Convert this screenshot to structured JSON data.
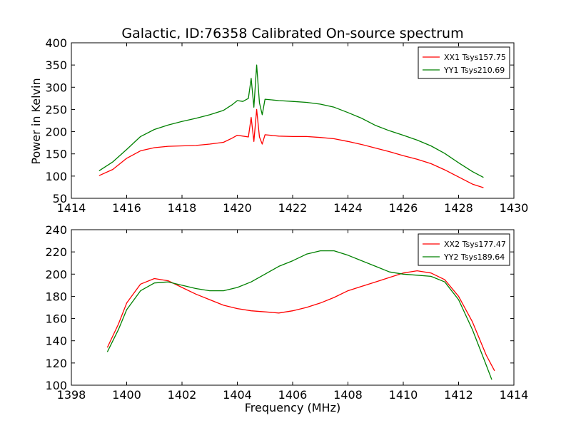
{
  "chart_data": [
    {
      "type": "line",
      "title": "Galactic, ID:76358 Calibrated On-source spectrum",
      "xlabel": "",
      "ylabel": "Power in Kelvin",
      "xlim": [
        1414,
        1430
      ],
      "ylim": [
        50,
        400
      ],
      "xticks": [
        1414,
        1416,
        1418,
        1420,
        1422,
        1424,
        1426,
        1428,
        1430
      ],
      "yticks": [
        50,
        100,
        150,
        200,
        250,
        300,
        350,
        400
      ],
      "grid": false,
      "legend": "top-right",
      "series": [
        {
          "name": "XX1 Tsys157.75",
          "color": "#ff0000",
          "points": [
            [
              1415.0,
              101
            ],
            [
              1415.5,
              115
            ],
            [
              1416.0,
              140
            ],
            [
              1416.5,
              157
            ],
            [
              1417.0,
              164
            ],
            [
              1417.5,
              167
            ],
            [
              1418.0,
              168
            ],
            [
              1418.5,
              169
            ],
            [
              1419.0,
              172
            ],
            [
              1419.5,
              176
            ],
            [
              1419.8,
              185
            ],
            [
              1420.0,
              192
            ],
            [
              1420.2,
              190
            ],
            [
              1420.4,
              188
            ],
            [
              1420.5,
              232
            ],
            [
              1420.6,
              178
            ],
            [
              1420.7,
              250
            ],
            [
              1420.8,
              188
            ],
            [
              1420.9,
              172
            ],
            [
              1421.0,
              193
            ],
            [
              1421.5,
              190
            ],
            [
              1422.0,
              189
            ],
            [
              1422.5,
              189
            ],
            [
              1423.0,
              187
            ],
            [
              1423.5,
              184
            ],
            [
              1424.0,
              178
            ],
            [
              1424.5,
              171
            ],
            [
              1425.0,
              163
            ],
            [
              1425.5,
              155
            ],
            [
              1426.0,
              146
            ],
            [
              1426.5,
              138
            ],
            [
              1427.0,
              128
            ],
            [
              1427.5,
              114
            ],
            [
              1428.0,
              98
            ],
            [
              1428.5,
              82
            ],
            [
              1428.9,
              74
            ]
          ]
        },
        {
          "name": "YY1 Tsys210.69",
          "color": "#008000",
          "points": [
            [
              1415.0,
              112
            ],
            [
              1415.5,
              132
            ],
            [
              1416.0,
              160
            ],
            [
              1416.5,
              189
            ],
            [
              1417.0,
              205
            ],
            [
              1417.5,
              215
            ],
            [
              1418.0,
              223
            ],
            [
              1418.5,
              230
            ],
            [
              1419.0,
              238
            ],
            [
              1419.5,
              248
            ],
            [
              1419.8,
              260
            ],
            [
              1420.0,
              270
            ],
            [
              1420.2,
              268
            ],
            [
              1420.4,
              275
            ],
            [
              1420.5,
              320
            ],
            [
              1420.6,
              255
            ],
            [
              1420.7,
              350
            ],
            [
              1420.8,
              265
            ],
            [
              1420.9,
              238
            ],
            [
              1421.0,
              273
            ],
            [
              1421.5,
              270
            ],
            [
              1422.0,
              268
            ],
            [
              1422.5,
              266
            ],
            [
              1423.0,
              262
            ],
            [
              1423.5,
              255
            ],
            [
              1424.0,
              243
            ],
            [
              1424.5,
              230
            ],
            [
              1425.0,
              214
            ],
            [
              1425.5,
              202
            ],
            [
              1426.0,
              192
            ],
            [
              1426.5,
              181
            ],
            [
              1427.0,
              168
            ],
            [
              1427.5,
              151
            ],
            [
              1428.0,
              130
            ],
            [
              1428.5,
              110
            ],
            [
              1428.9,
              97
            ]
          ]
        }
      ]
    },
    {
      "type": "line",
      "title": "",
      "xlabel": "Frequency (MHz)",
      "ylabel": "",
      "xlim": [
        1398,
        1414
      ],
      "ylim": [
        100,
        240
      ],
      "xticks": [
        1398,
        1400,
        1402,
        1404,
        1406,
        1408,
        1410,
        1412,
        1414
      ],
      "yticks": [
        100,
        120,
        140,
        160,
        180,
        200,
        220,
        240
      ],
      "grid": false,
      "legend": "top-right",
      "series": [
        {
          "name": "XX2 Tsys177.47",
          "color": "#ff0000",
          "points": [
            [
              1399.3,
              134
            ],
            [
              1399.7,
              155
            ],
            [
              1400.0,
              174
            ],
            [
              1400.5,
              191
            ],
            [
              1401.0,
              196
            ],
            [
              1401.5,
              194
            ],
            [
              1402.0,
              188
            ],
            [
              1402.5,
              182
            ],
            [
              1403.0,
              177
            ],
            [
              1403.5,
              172
            ],
            [
              1404.0,
              169
            ],
            [
              1404.5,
              167
            ],
            [
              1405.0,
              166
            ],
            [
              1405.5,
              165
            ],
            [
              1406.0,
              167
            ],
            [
              1406.5,
              170
            ],
            [
              1407.0,
              174
            ],
            [
              1407.5,
              179
            ],
            [
              1408.0,
              185
            ],
            [
              1408.5,
              189
            ],
            [
              1409.0,
              193
            ],
            [
              1409.5,
              197
            ],
            [
              1410.0,
              201
            ],
            [
              1410.5,
              203
            ],
            [
              1411.0,
              201
            ],
            [
              1411.5,
              195
            ],
            [
              1412.0,
              180
            ],
            [
              1412.5,
              157
            ],
            [
              1413.0,
              127
            ],
            [
              1413.3,
              113
            ]
          ]
        },
        {
          "name": "YY2 Tsys189.64",
          "color": "#008000",
          "points": [
            [
              1399.3,
              130
            ],
            [
              1399.7,
              150
            ],
            [
              1400.0,
              168
            ],
            [
              1400.5,
              185
            ],
            [
              1401.0,
              192
            ],
            [
              1401.5,
              193
            ],
            [
              1402.0,
              190
            ],
            [
              1402.5,
              187
            ],
            [
              1403.0,
              185
            ],
            [
              1403.5,
              185
            ],
            [
              1404.0,
              188
            ],
            [
              1404.5,
              193
            ],
            [
              1405.0,
              200
            ],
            [
              1405.5,
              207
            ],
            [
              1406.0,
              212
            ],
            [
              1406.5,
              218
            ],
            [
              1407.0,
              221
            ],
            [
              1407.5,
              221
            ],
            [
              1408.0,
              217
            ],
            [
              1408.5,
              212
            ],
            [
              1409.0,
              207
            ],
            [
              1409.5,
              202
            ],
            [
              1410.0,
              200
            ],
            [
              1410.5,
              199
            ],
            [
              1411.0,
              198
            ],
            [
              1411.5,
              193
            ],
            [
              1412.0,
              177
            ],
            [
              1412.5,
              150
            ],
            [
              1413.0,
              118
            ],
            [
              1413.2,
              105
            ]
          ]
        }
      ]
    }
  ]
}
